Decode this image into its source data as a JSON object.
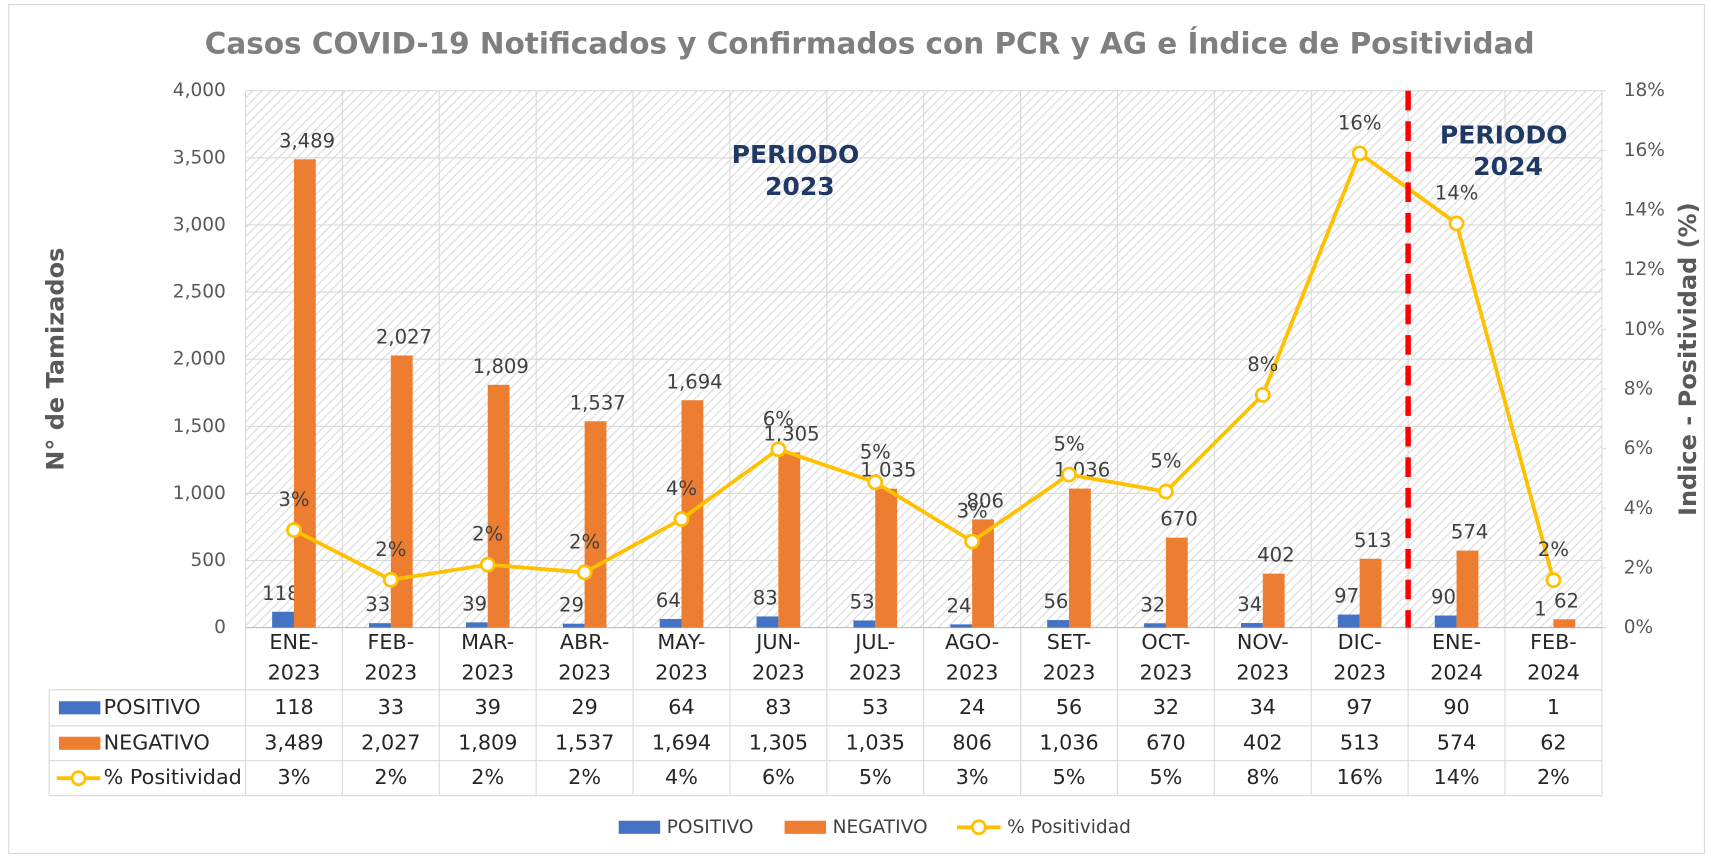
{
  "chart_data": {
    "type": "bar",
    "title": "Casos COVID-19 Notificados y Confirmados con PCR y AG e Índice de Positividad",
    "y_label": "N° de Tamizados",
    "y2_label": "Indice - Positividad (%)",
    "categories": [
      "ENE-2023",
      "FEB-2023",
      "MAR-2023",
      "ABR-2023",
      "MAY-2023",
      "JUN-2023",
      "JUL-2023",
      "AGO-2023",
      "SET-2023",
      "OCT-2023",
      "NOV-2023",
      "DIC-2023",
      "ENE-2024",
      "FEB-2024"
    ],
    "series": [
      {
        "name": "POSITIVO",
        "color": "#4472c4",
        "values": [
          118,
          33,
          39,
          29,
          64,
          83,
          53,
          24,
          56,
          32,
          34,
          97,
          90,
          1
        ],
        "value_labels": [
          "118",
          "33",
          "39",
          "29",
          "64",
          "83",
          "53",
          "24",
          "56",
          "32",
          "34",
          "97",
          "90",
          "1"
        ]
      },
      {
        "name": "NEGATIVO",
        "color": "#ed7d31",
        "values": [
          3489,
          2027,
          1809,
          1537,
          1694,
          1305,
          1035,
          806,
          1036,
          670,
          402,
          513,
          574,
          62
        ],
        "value_labels": [
          "3,489",
          "2,027",
          "1,809",
          "1,537",
          "1,694",
          "1,305",
          "1,035",
          "806",
          "1,036",
          "670",
          "402",
          "513",
          "574",
          "62"
        ]
      },
      {
        "name": "% Positividad",
        "type": "line",
        "axis": "y2",
        "color": "#ffc000",
        "values": [
          3.27,
          1.6,
          2.11,
          1.85,
          3.64,
          5.98,
          4.87,
          2.89,
          5.13,
          4.56,
          7.8,
          15.9,
          13.55,
          1.59
        ],
        "value_labels": [
          "3%",
          "2%",
          "2%",
          "2%",
          "4%",
          "6%",
          "5%",
          "3%",
          "5%",
          "5%",
          "8%",
          "16%",
          "14%",
          "2%"
        ]
      }
    ],
    "ylim": [
      0,
      4000
    ],
    "yticks": [
      0,
      500,
      {
        "value": 1000,
        "label": "1,000"
      },
      {
        "value": 1500,
        "label": "1,500"
      },
      {
        "value": 2000,
        "label": "2,000"
      },
      {
        "value": 2500,
        "label": "2,500"
      },
      {
        "value": 3000,
        "label": "3,000"
      },
      {
        "value": 3500,
        "label": "3,500"
      },
      {
        "value": 4000,
        "label": "4,000"
      }
    ],
    "y2lim": [
      0,
      18
    ],
    "y2ticks": [
      {
        "value": 0,
        "label": "0%"
      },
      {
        "value": 2,
        "label": "2%"
      },
      {
        "value": 4,
        "label": "4%"
      },
      {
        "value": 6,
        "label": "6%"
      },
      {
        "value": 8,
        "label": "8%"
      },
      {
        "value": 10,
        "label": "10%"
      },
      {
        "value": 12,
        "label": "12%"
      },
      {
        "value": 14,
        "label": "14%"
      },
      {
        "value": 16,
        "label": "16%"
      },
      {
        "value": 18,
        "label": "18%"
      }
    ],
    "grid": true,
    "annotations": [
      {
        "text": "PERIODO 2023"
      },
      {
        "text": "PERIODO 2024"
      }
    ]
  }
}
